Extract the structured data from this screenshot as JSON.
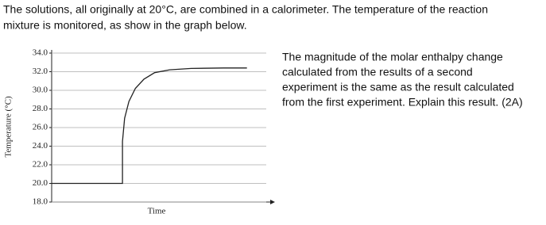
{
  "intro": [
    "The solutions, all originally at 20°C, are combined in a calorimeter. The temperature of the reaction",
    "mixture is monitored, as show in the graph below."
  ],
  "question": [
    "The magnitude of the molar enthalpy change",
    "calculated from the results of a second",
    "experiment is the same as the result calculated",
    "from the first experiment. Explain this result. (2A)"
  ],
  "chart_data": {
    "type": "line",
    "xlabel": "Time",
    "ylabel": "Temperature (°C)",
    "x": [
      0,
      33,
      33,
      34,
      36,
      39,
      43,
      48,
      55,
      65,
      80,
      91
    ],
    "series": [
      {
        "color": "#222222",
        "values": [
          20,
          20,
          24.5,
          27,
          28.8,
          30.2,
          31.2,
          31.9,
          32.2,
          32.35,
          32.4,
          32.4
        ]
      }
    ],
    "xlim": [
      0,
      100
    ],
    "ylim": [
      18,
      34
    ],
    "yticks": [
      {
        "value": 18,
        "label": "18.0"
      },
      {
        "value": 20,
        "label": "20.0"
      },
      {
        "value": 22,
        "label": "22.0"
      },
      {
        "value": 24,
        "label": "24.0"
      },
      {
        "value": 26,
        "label": "26.0"
      },
      {
        "value": 28,
        "label": "28.0"
      },
      {
        "value": 30,
        "label": "30.0"
      },
      {
        "value": 32,
        "label": "32.0"
      },
      {
        "value": 34,
        "label": "34.0"
      }
    ],
    "grid": true
  }
}
